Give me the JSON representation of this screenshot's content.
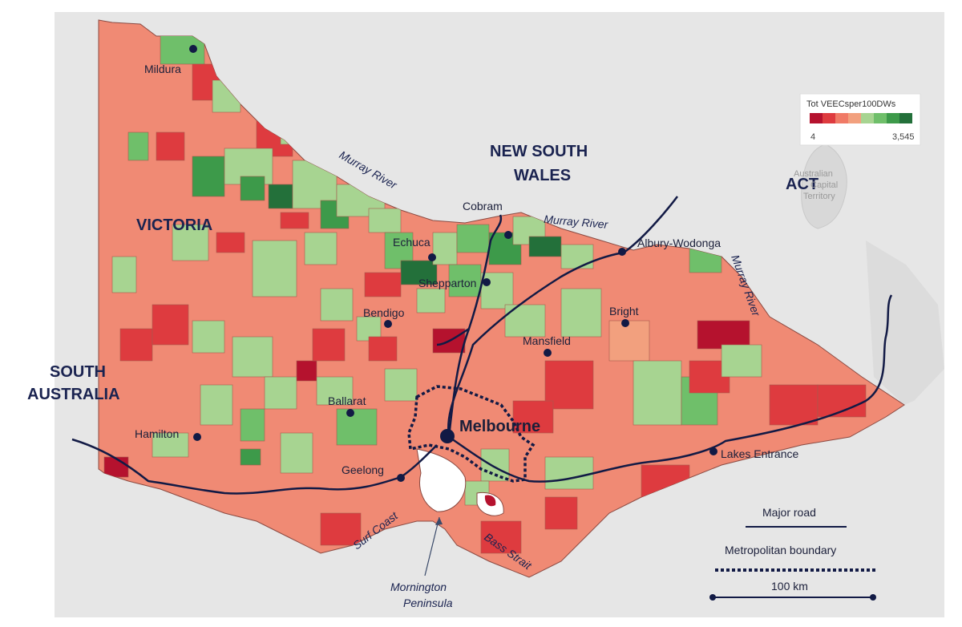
{
  "legend": {
    "title": "Tot VEECsper100DWs",
    "min_label": "4",
    "max_label": "3,545",
    "colors": [
      "#b5122e",
      "#de3b3f",
      "#f07a66",
      "#f2a07e",
      "#a7d491",
      "#6fbf6a",
      "#3d9a4a",
      "#23703a"
    ]
  },
  "regions": {
    "victoria": "VICTORIA",
    "nsw_line1": "NEW SOUTH",
    "nsw_line2": "WALES",
    "sa_line1": "SOUTH",
    "sa_line2": "AUSTRALIA",
    "act": "ACT",
    "act_basemap_1": "Australian",
    "act_basemap_2": "Capital",
    "act_basemap_3": "Territory"
  },
  "cities": [
    {
      "name": "Mildura"
    },
    {
      "name": "Cobram"
    },
    {
      "name": "Echuca"
    },
    {
      "name": "Shepparton"
    },
    {
      "name": "Albury-Wodonga"
    },
    {
      "name": "Bendigo"
    },
    {
      "name": "Bright"
    },
    {
      "name": "Mansfield"
    },
    {
      "name": "Ballarat"
    },
    {
      "name": "Melbourne"
    },
    {
      "name": "Hamilton"
    },
    {
      "name": "Geelong"
    },
    {
      "name": "Lakes Entrance"
    }
  ],
  "water_labels": {
    "murray_1": "Murray River",
    "murray_2": "Murray River",
    "murray_3": "Murray River",
    "surf_coast": "Surf Coast",
    "bass_strait": "Bass Strait",
    "mornington_1": "Mornington",
    "mornington_2": "Peninsula"
  },
  "key": {
    "major_road": "Major road",
    "metro_boundary": "Metropolitan boundary",
    "scale": "100 km"
  },
  "colors": {
    "road": "#121a45",
    "base_land": "#f08a74",
    "basemap": "#e6e6e6"
  }
}
